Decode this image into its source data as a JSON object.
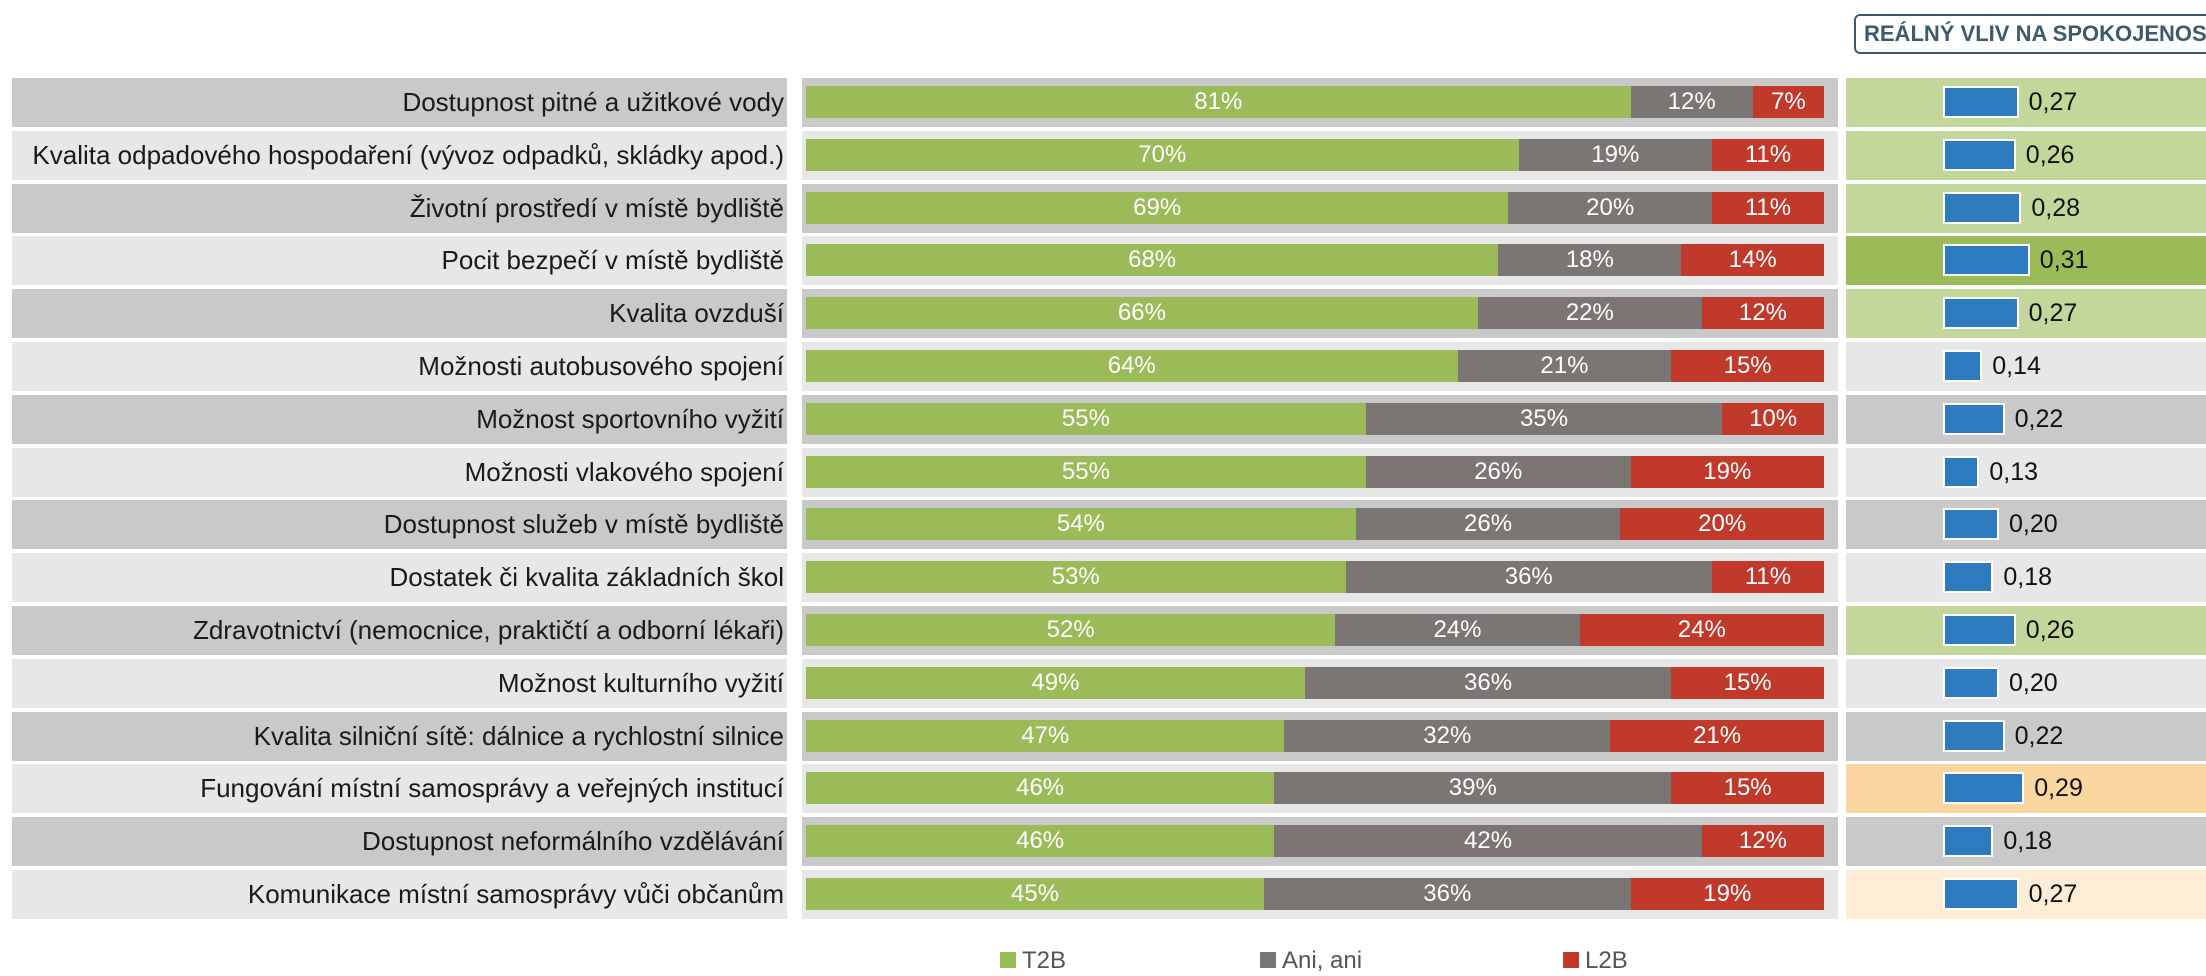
{
  "header": "REÁLNÝ VLIV NA SPOKOJENOST",
  "colors": {
    "t2b": "#9bbb59",
    "ani": "#7b7574",
    "l2b": "#c0392b",
    "vliv_bar": "#2e7bbf",
    "row_dark": "#c9c9c9",
    "row_light": "#e7e7e7",
    "vliv_green": "#c4d79b",
    "vliv_green_strong": "#9bbb59",
    "vliv_orange": "#fad7a0",
    "vliv_orange_light": "#fdedd4"
  },
  "legend": {
    "t2b": "T2B",
    "ani": "Ani, ani",
    "l2b": "L2B"
  },
  "chart_data": {
    "type": "bar",
    "orientation": "horizontal-stacked-100",
    "categories": [
      "Dostupnost pitné a užitkové vody",
      "Kvalita odpadového hospodaření (vývoz odpadků, skládky apod.)",
      "Životní prostředí v místě bydliště",
      "Pocit bezpečí v místě bydliště",
      "Kvalita ovzduší",
      "Možnosti autobusového spojení",
      "Možnost sportovního vyžití",
      "Možnosti vlakového spojení",
      "Dostupnost služeb v místě bydliště",
      "Dostatek či kvalita základních škol",
      "Zdravotnictví (nemocnice, praktičtí a odborní lékaři)",
      "Možnost kulturního vyžití",
      "Kvalita silniční sítě: dálnice a rychlostní silnice",
      "Fungování místní samosprávy a veřejných institucí",
      "Dostupnost neformálního vzdělávání",
      "Komunikace místní samosprávy vůči občanům"
    ],
    "series": [
      {
        "name": "T2B",
        "values": [
          81,
          70,
          69,
          68,
          66,
          64,
          55,
          55,
          54,
          53,
          52,
          49,
          47,
          46,
          46,
          45
        ]
      },
      {
        "name": "Ani, ani",
        "values": [
          12,
          19,
          20,
          18,
          22,
          21,
          35,
          26,
          26,
          36,
          24,
          36,
          32,
          39,
          42,
          36
        ]
      },
      {
        "name": "L2B",
        "values": [
          7,
          11,
          11,
          14,
          12,
          15,
          10,
          19,
          20,
          11,
          24,
          15,
          21,
          15,
          12,
          19
        ]
      }
    ],
    "value_format": "percent",
    "vliv": {
      "title": "REÁLNÝ VLIV NA SPOKOJENOST",
      "values": [
        "0,27",
        "0,26",
        "0,28",
        "0,31",
        "0,27",
        "0,14",
        "0,22",
        "0,13",
        "0,20",
        "0,18",
        "0,26",
        "0,20",
        "0,22",
        "0,29",
        "0,18",
        "0,27"
      ],
      "numeric": [
        0.27,
        0.26,
        0.28,
        0.31,
        0.27,
        0.14,
        0.22,
        0.13,
        0.2,
        0.18,
        0.26,
        0.2,
        0.22,
        0.29,
        0.18,
        0.27
      ],
      "highlight": [
        "green",
        "green",
        "green",
        "green-strong",
        "green",
        "none",
        "none",
        "none",
        "none",
        "none",
        "green",
        "none",
        "none",
        "orange",
        "none",
        "orange-light"
      ]
    },
    "legend_position": "bottom"
  }
}
